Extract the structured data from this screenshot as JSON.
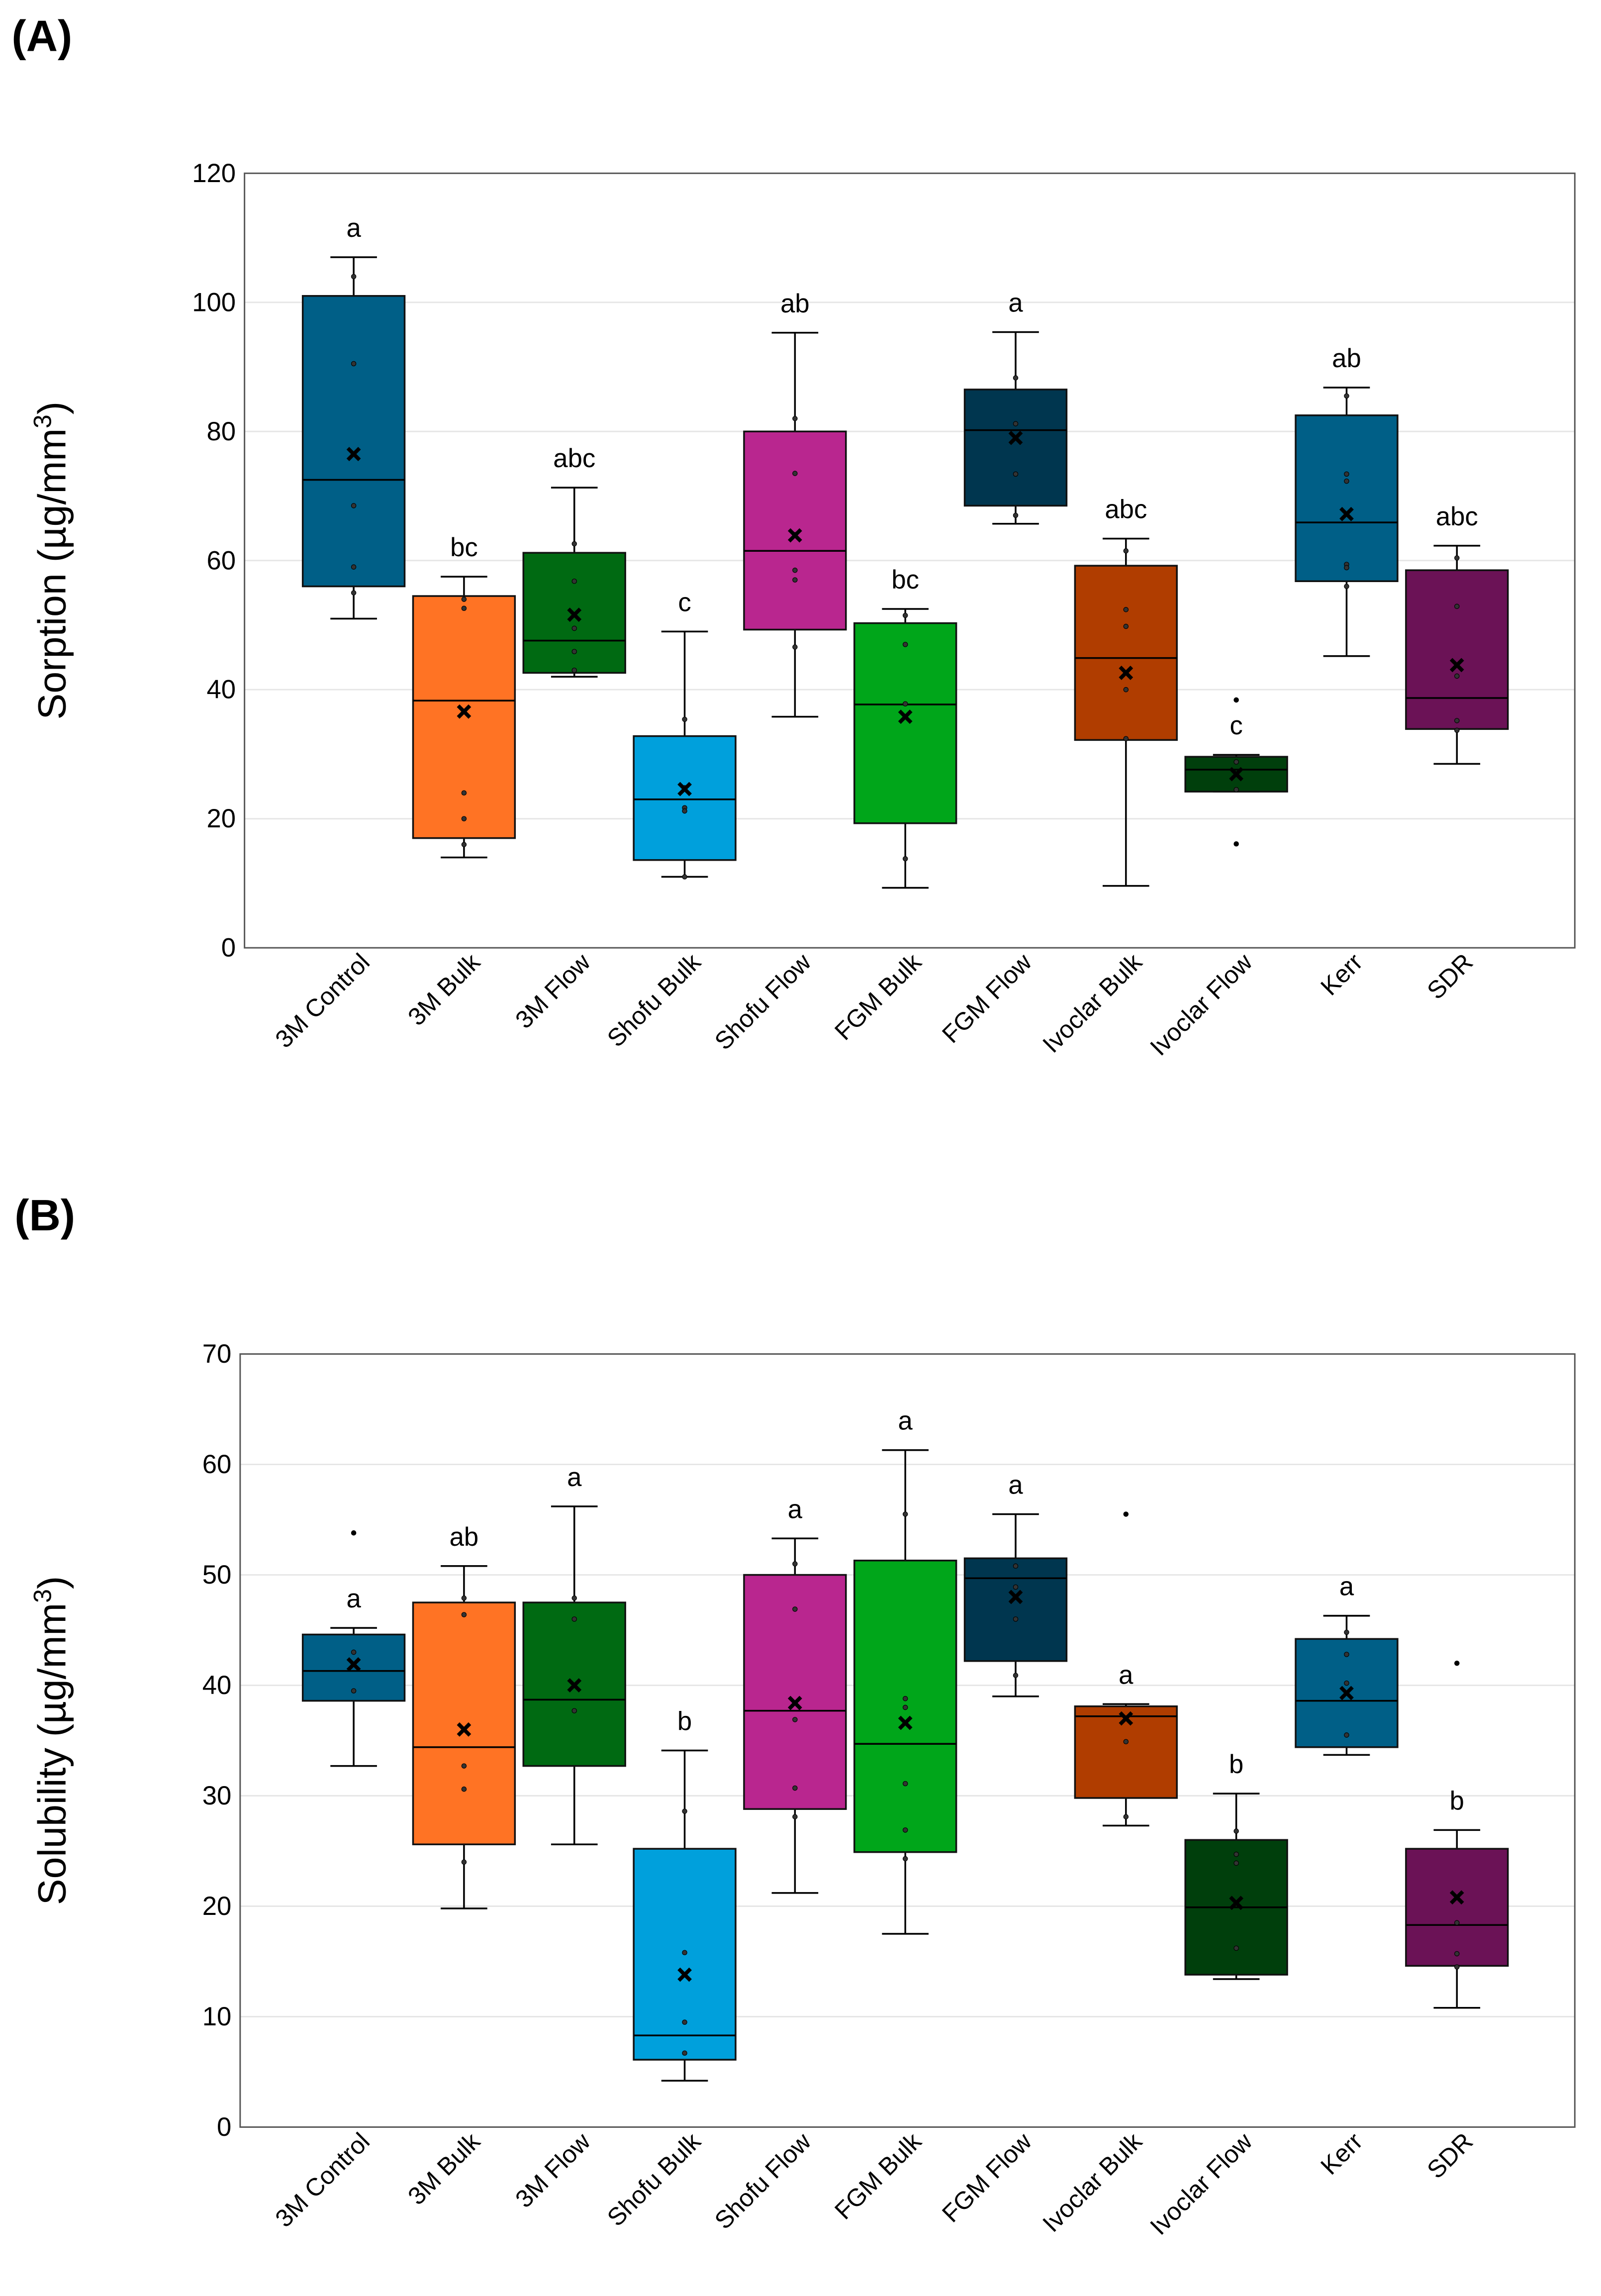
{
  "chart_data": [
    {
      "panel_label": "(A)",
      "type": "box",
      "ylabel": "Sorption (µg/mm³)",
      "ylabel_main": "Sorption (µg/mm",
      "ylabel_sup": "3",
      "ylabel_end": ")",
      "ylim": [
        0,
        120
      ],
      "yticks": [
        0,
        20,
        40,
        60,
        80,
        100,
        120
      ],
      "grid": true,
      "categories": [
        "3M Control",
        "3M Bulk",
        "3M Flow",
        "Shofu Bulk",
        "Shofu Flow",
        "FGM Bulk",
        "FGM Flow",
        "Ivoclar Bulk",
        "Ivoclar Flow",
        "Kerr",
        "SDR"
      ],
      "colors": [
        "#005f87",
        "#ff7324",
        "#006a12",
        "#00a0dc",
        "#b9268f",
        "#00a61a",
        "#00364f",
        "#b03d00",
        "#003f0c",
        "#005f87",
        "#6b1256"
      ],
      "series": [
        {
          "name": "3M Control",
          "whisker_low": 51,
          "q1": 56,
          "median": 72.5,
          "q3": 101,
          "whisker_high": 107,
          "mean": 76.5,
          "points": [
            104,
            90.5,
            68.5,
            59,
            55
          ],
          "outliers": [],
          "letter": "a"
        },
        {
          "name": "3M Bulk",
          "whisker_low": 14,
          "q1": 17,
          "median": 38.3,
          "q3": 54.5,
          "whisker_high": 57.5,
          "mean": 36.6,
          "points": [
            54,
            52.6,
            24,
            20,
            16
          ],
          "outliers": [],
          "letter": "bc"
        },
        {
          "name": "3M Flow",
          "whisker_low": 42,
          "q1": 42.6,
          "median": 47.6,
          "q3": 61.2,
          "whisker_high": 71.3,
          "mean": 51.6,
          "points": [
            62.6,
            56.8,
            49.5,
            45.9,
            43
          ],
          "outliers": [],
          "letter": "abc"
        },
        {
          "name": "Shofu Bulk",
          "whisker_low": 11,
          "q1": 13.6,
          "median": 23,
          "q3": 32.8,
          "whisker_high": 49,
          "mean": 24.6,
          "points": [
            35.4,
            24.8,
            21.7,
            21.2,
            11
          ],
          "outliers": [],
          "letter": "c"
        },
        {
          "name": "Shofu Flow",
          "whisker_low": 35.8,
          "q1": 49.3,
          "median": 61.5,
          "q3": 80,
          "whisker_high": 95.3,
          "mean": 63.9,
          "points": [
            82,
            73.5,
            64,
            58.5,
            57,
            46.6
          ],
          "outliers": [],
          "letter": "ab"
        },
        {
          "name": "FGM Bulk",
          "whisker_low": 9.3,
          "q1": 19.3,
          "median": 37.7,
          "q3": 50.3,
          "whisker_high": 52.5,
          "mean": 35.8,
          "points": [
            51.5,
            47,
            37.8,
            13.8
          ],
          "outliers": [],
          "letter": "bc"
        },
        {
          "name": "FGM Flow",
          "whisker_low": 65.7,
          "q1": 68.5,
          "median": 80.2,
          "q3": 86.5,
          "whisker_high": 95.4,
          "mean": 79,
          "points": [
            88.3,
            81.2,
            73.4,
            67
          ],
          "outliers": [],
          "letter": "a"
        },
        {
          "name": "Ivoclar Bulk",
          "whisker_low": 9.6,
          "q1": 32.2,
          "median": 44.9,
          "q3": 59.2,
          "whisker_high": 63.4,
          "mean": 42.6,
          "points": [
            61.5,
            52.4,
            49.8,
            40,
            32.4
          ],
          "outliers": [],
          "letter": "abc"
        },
        {
          "name": "Ivoclar Flow",
          "whisker_low": 24.2,
          "q1": 24.2,
          "median": 27.6,
          "q3": 29.6,
          "whisker_high": 29.9,
          "mean": 26.9,
          "points": [
            28.8,
            24.5
          ],
          "outliers": [
            38.4,
            16.1
          ],
          "letter": "c"
        },
        {
          "name": "Kerr",
          "whisker_low": 45.2,
          "q1": 56.8,
          "median": 65.9,
          "q3": 82.5,
          "whisker_high": 86.8,
          "mean": 67.2,
          "points": [
            85.5,
            73.4,
            72.3,
            59.4,
            58.9,
            56
          ],
          "outliers": [],
          "letter": "ab"
        },
        {
          "name": "SDR",
          "whisker_low": 28.5,
          "q1": 33.9,
          "median": 38.7,
          "q3": 58.5,
          "whisker_high": 62.3,
          "mean": 43.8,
          "points": [
            60.4,
            52.9,
            42.1,
            35.2,
            33.7
          ],
          "outliers": [],
          "letter": "abc"
        }
      ]
    },
    {
      "panel_label": "(B)",
      "type": "box",
      "ylabel": "Solubility (µg/mm³)",
      "ylabel_main": "Solubility (µg/mm",
      "ylabel_sup": "3",
      "ylabel_end": ")",
      "ylim": [
        0,
        70
      ],
      "yticks": [
        0,
        10,
        20,
        30,
        40,
        50,
        60,
        70
      ],
      "grid": true,
      "categories": [
        "3M Control",
        "3M Bulk",
        "3M Flow",
        "Shofu Bulk",
        "Shofu Flow",
        "FGM Bulk",
        "FGM Flow",
        "Ivoclar Bulk",
        "Ivoclar Flow",
        "Kerr",
        "SDR"
      ],
      "colors": [
        "#005f87",
        "#ff7324",
        "#006a12",
        "#00a0dc",
        "#b9268f",
        "#00a61a",
        "#00364f",
        "#b03d00",
        "#003f0c",
        "#005f87",
        "#6b1256"
      ],
      "series": [
        {
          "name": "3M Control",
          "whisker_low": 32.7,
          "q1": 38.6,
          "median": 41.3,
          "q3": 44.6,
          "whisker_high": 45.2,
          "mean": 41.9,
          "points": [
            43,
            39.5
          ],
          "outliers": [
            53.8
          ],
          "letter": "a"
        },
        {
          "name": "3M Bulk",
          "whisker_low": 19.8,
          "q1": 25.6,
          "median": 34.4,
          "q3": 47.5,
          "whisker_high": 50.8,
          "mean": 36,
          "points": [
            47.9,
            46.4,
            32.7,
            30.6,
            24
          ],
          "outliers": [],
          "letter": "ab"
        },
        {
          "name": "3M Flow",
          "whisker_low": 25.6,
          "q1": 32.7,
          "median": 38.7,
          "q3": 47.5,
          "whisker_high": 56.2,
          "mean": 40,
          "points": [
            47.9,
            46,
            37.7
          ],
          "outliers": [],
          "letter": "a"
        },
        {
          "name": "Shofu Bulk",
          "whisker_low": 4.2,
          "q1": 6.1,
          "median": 8.3,
          "q3": 25.2,
          "whisker_high": 34.1,
          "mean": 13.8,
          "points": [
            28.6,
            15.8,
            9.5,
            6.7
          ],
          "outliers": [],
          "letter": "b"
        },
        {
          "name": "Shofu Flow",
          "whisker_low": 21.2,
          "q1": 28.8,
          "median": 37.7,
          "q3": 50,
          "whisker_high": 53.3,
          "mean": 38.4,
          "points": [
            51,
            46.9,
            36.9,
            30.7,
            28.1
          ],
          "outliers": [],
          "letter": "a"
        },
        {
          "name": "FGM Bulk",
          "whisker_low": 17.5,
          "q1": 24.9,
          "median": 34.7,
          "q3": 51.3,
          "whisker_high": 61.3,
          "mean": 36.6,
          "points": [
            55.5,
            38.8,
            38,
            31.1,
            26.9,
            24.3
          ],
          "outliers": [],
          "letter": "a"
        },
        {
          "name": "FGM Flow",
          "whisker_low": 39,
          "q1": 42.2,
          "median": 49.7,
          "q3": 51.5,
          "whisker_high": 55.5,
          "mean": 48,
          "points": [
            50.8,
            48.9,
            46,
            40.9
          ],
          "outliers": [],
          "letter": "a"
        },
        {
          "name": "Ivoclar Bulk",
          "whisker_low": 27.3,
          "q1": 29.8,
          "median": 37.2,
          "q3": 38.1,
          "whisker_high": 38.3,
          "mean": 37,
          "points": [
            34.9,
            28.1
          ],
          "outliers": [
            55.5
          ],
          "letter": "a"
        },
        {
          "name": "Ivoclar Flow",
          "whisker_low": 13.4,
          "q1": 13.8,
          "median": 19.9,
          "q3": 26,
          "whisker_high": 30.2,
          "mean": 20.3,
          "points": [
            26.8,
            24.7,
            23.9,
            16.2
          ],
          "outliers": [],
          "letter": "b"
        },
        {
          "name": "Kerr",
          "whisker_low": 33.7,
          "q1": 34.4,
          "median": 38.6,
          "q3": 44.2,
          "whisker_high": 46.3,
          "mean": 39.3,
          "points": [
            44.8,
            42.8,
            40.2,
            35.5
          ],
          "outliers": [],
          "letter": "a"
        },
        {
          "name": "SDR",
          "whisker_low": 10.8,
          "q1": 14.6,
          "median": 18.3,
          "q3": 25.2,
          "whisker_high": 26.9,
          "mean": 20.8,
          "points": [
            20.8,
            18.5,
            15.7,
            14.5
          ],
          "outliers": [
            42
          ],
          "letter": "b"
        }
      ]
    }
  ]
}
